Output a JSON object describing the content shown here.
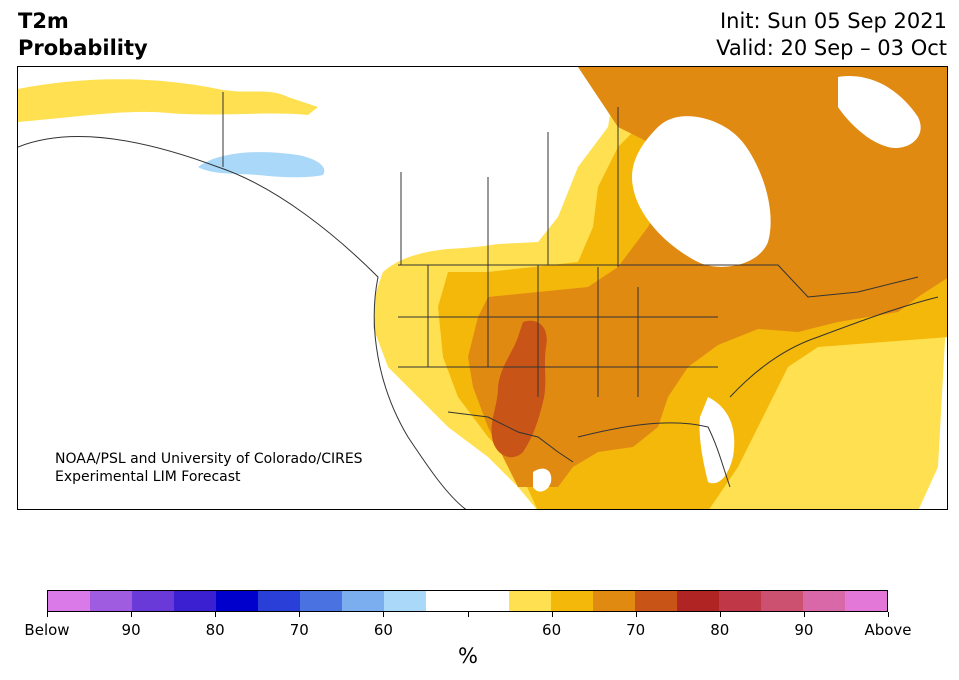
{
  "title": {
    "line1": "T2m",
    "line2": "Probability"
  },
  "forecast": {
    "init": "Init: Sun 05 Sep 2021",
    "valid": "Valid: 20 Sep – 03 Oct"
  },
  "credit": {
    "line1": "NOAA/PSL and University of Colorado/CIRES",
    "line2": "Experimental LIM Forecast"
  },
  "colorbar": {
    "colors": [
      "#d97ae8",
      "#a05ce0",
      "#6a3ad8",
      "#3a20d0",
      "#0000cc",
      "#2a3ed8",
      "#4a72e0",
      "#7aaeee",
      "#aad8f8",
      "#ffffff",
      "#ffffff",
      "#ffe050",
      "#f4b80a",
      "#e08a12",
      "#c85418",
      "#b02424",
      "#c03848",
      "#cc5070",
      "#d868a8",
      "#e478d8"
    ],
    "ticks": [
      "Below",
      "90",
      "80",
      "70",
      "60",
      "",
      "60",
      "70",
      "80",
      "90",
      "Above"
    ],
    "unit": "%"
  },
  "map_colors": {
    "land": "#ffffff",
    "p55": "#ffe050",
    "p60": "#f4b80a",
    "p65": "#e08a12",
    "p70": "#c85418",
    "below60": "#aad8f8",
    "lines": "#333333"
  }
}
